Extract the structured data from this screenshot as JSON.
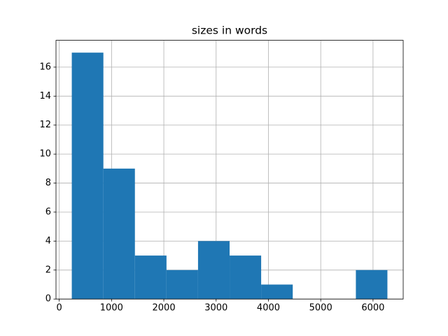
{
  "chart_data": {
    "type": "histogram",
    "title": "sizes in words",
    "bins": [
      240,
      844,
      1447,
      2051,
      2654,
      3258,
      3861,
      4465,
      5068,
      5672,
      6275
    ],
    "values": [
      17,
      9,
      3,
      2,
      4,
      3,
      1,
      0,
      0,
      2
    ],
    "color": "#1f77b4",
    "xlim": [
      -62,
      6577
    ],
    "xticks": [
      0,
      1000,
      2000,
      3000,
      4000,
      5000,
      6000
    ],
    "ylim": [
      0,
      17.85
    ],
    "yticks": [
      0,
      2,
      4,
      6,
      8,
      10,
      12,
      14,
      16
    ],
    "grid": true
  }
}
